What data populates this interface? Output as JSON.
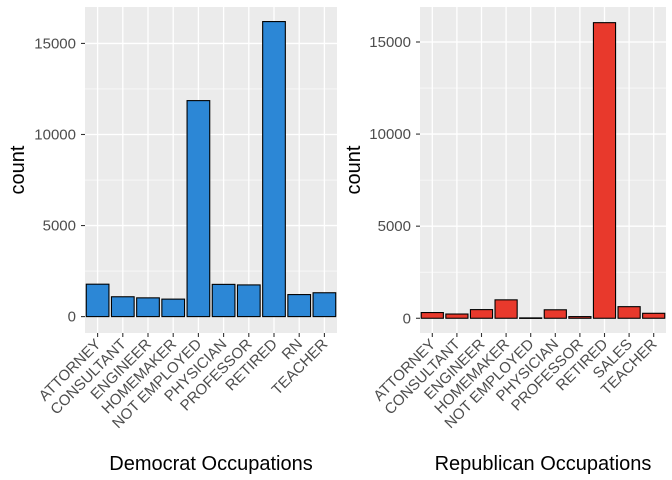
{
  "chart_data": [
    {
      "type": "bar",
      "xlabel": "Democrat Occupations",
      "ylabel": "count",
      "categories": [
        "ATTORNEY",
        "CONSULTANT",
        "ENGINEER",
        "HOMEMAKER",
        "NOT EMPLOYED",
        "PHYSICIAN",
        "PROFESSOR",
        "RETIRED",
        "RN",
        "TEACHER"
      ],
      "values": [
        1780,
        1090,
        1030,
        960,
        11860,
        1770,
        1740,
        16200,
        1210,
        1310
      ],
      "yticks": [
        0,
        5000,
        10000,
        15000
      ],
      "ylim": [
        -900,
        17000
      ],
      "fill_color": "#2c87d6",
      "panel_background": "#ebebeb",
      "grid": true
    },
    {
      "type": "bar",
      "xlabel": "Republican Occupations",
      "ylabel": "count",
      "categories": [
        "ATTORNEY",
        "CONSULTANT",
        "ENGINEER",
        "HOMEMAKER",
        "NOT EMPLOYED",
        "PHYSICIAN",
        "PROFESSOR",
        "RETIRED",
        "SALES",
        "TEACHER"
      ],
      "values": [
        310,
        230,
        470,
        1000,
        20,
        460,
        90,
        16050,
        630,
        270
      ],
      "yticks": [
        0,
        5000,
        10000,
        15000
      ],
      "ylim": [
        -800,
        16900
      ],
      "fill_color": "#e8392c",
      "panel_background": "#ebebeb",
      "grid": true
    }
  ]
}
